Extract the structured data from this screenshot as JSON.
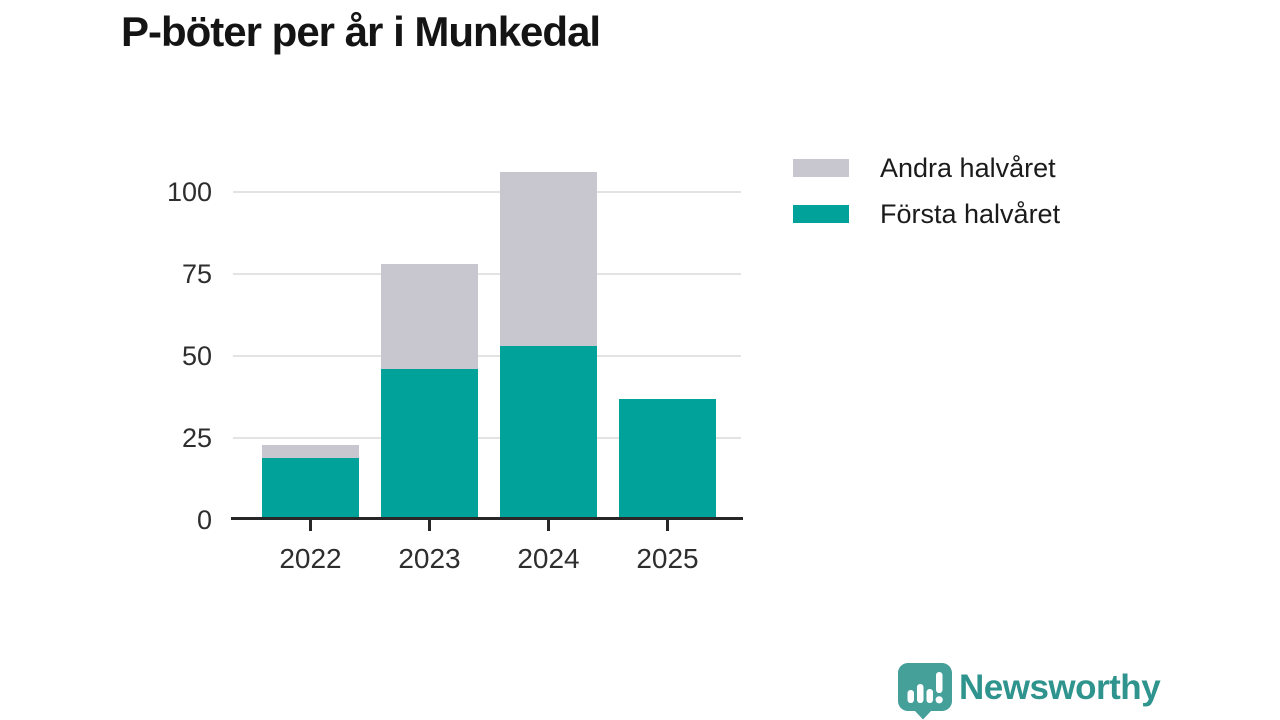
{
  "header": {
    "title": "P-böter per år i Munkedal"
  },
  "chart_data": {
    "type": "bar",
    "stacked": true,
    "title": "P-böter per år i Munkedal",
    "categories": [
      "2022",
      "2023",
      "2024",
      "2025"
    ],
    "series": [
      {
        "name": "Första halvåret",
        "color": "#00a29a",
        "values": [
          19,
          46,
          53,
          37
        ]
      },
      {
        "name": "Andra halvåret",
        "color": "#c8c6ce",
        "values": [
          4,
          32,
          53,
          0
        ]
      }
    ],
    "totals": [
      23,
      78,
      106,
      37
    ],
    "xlabel": "",
    "ylabel": "",
    "ylim": [
      0,
      110
    ],
    "yticks": [
      0,
      25,
      50,
      75,
      100
    ],
    "grid": true,
    "legend": {
      "position": "top-right",
      "items": [
        {
          "label": "Andra halvåret",
          "color": "#c8c6ce"
        },
        {
          "label": "Första halvåret",
          "color": "#00a29a"
        }
      ]
    },
    "colors": {
      "axis": "#272727",
      "gridline": "#e3e3e3",
      "tick_text": "#2e2e2e"
    }
  },
  "footer": {
    "brand": "Newsworthy",
    "brand_color": "#2f948d",
    "logo_icon": "bar-chart-speech-bubble-icon",
    "logo_icon_color": "#46a09a"
  }
}
